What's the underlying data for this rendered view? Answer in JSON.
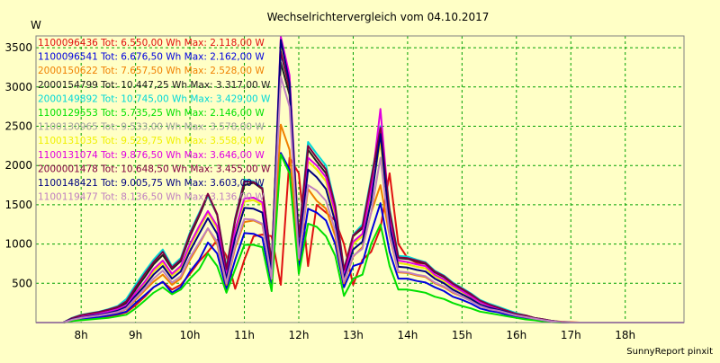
{
  "chart_data": {
    "type": "line",
    "title": "Wechselrichtervergleich vom 04.10.2017",
    "ylabel": "W",
    "xlabel": "",
    "footer": "SunnyReport pinxit",
    "ylim": [
      0,
      3650
    ],
    "xlim": [
      7.17,
      19.08
    ],
    "yticks": [
      500,
      1000,
      1500,
      2000,
      2500,
      3000,
      3500
    ],
    "xticks": [
      {
        "value": 8,
        "label": "8h"
      },
      {
        "value": 9,
        "label": "9h"
      },
      {
        "value": 10,
        "label": "10h"
      },
      {
        "value": 11,
        "label": "11h"
      },
      {
        "value": 12,
        "label": "12h"
      },
      {
        "value": 13,
        "label": "13h"
      },
      {
        "value": 14,
        "label": "14h"
      },
      {
        "value": 15,
        "label": "15h"
      },
      {
        "value": 16,
        "label": "16h"
      },
      {
        "value": 17,
        "label": "17h"
      },
      {
        "value": 18,
        "label": "18h"
      }
    ],
    "grid": true,
    "legend_position": "top-left",
    "x": [
      7.17,
      7.5,
      7.67,
      7.83,
      8.0,
      8.17,
      8.33,
      8.5,
      8.67,
      8.83,
      9.0,
      9.17,
      9.33,
      9.5,
      9.67,
      9.83,
      10.0,
      10.17,
      10.33,
      10.5,
      10.67,
      10.83,
      11.0,
      11.17,
      11.33,
      11.5,
      11.67,
      11.83,
      12.0,
      12.17,
      12.33,
      12.5,
      12.67,
      12.83,
      13.0,
      13.17,
      13.33,
      13.5,
      13.67,
      13.83,
      14.0,
      14.17,
      14.33,
      14.5,
      14.67,
      14.83,
      15.0,
      15.17,
      15.33,
      15.5,
      15.67,
      15.83,
      16.0,
      16.17,
      16.33,
      16.5,
      16.67,
      16.83,
      17.0,
      17.17,
      17.33,
      17.5,
      17.67,
      17.83,
      18.0,
      18.17,
      18.33,
      18.5,
      18.67,
      18.83,
      19.0,
      19.08
    ],
    "series": [
      {
        "name": "1100096436 Tot: 6.550,00 Wh Max: 2.118,00 W",
        "color": "#e01010",
        "values": [
          0,
          0,
          0,
          20,
          40,
          50,
          60,
          80,
          100,
          130,
          220,
          330,
          450,
          520,
          420,
          480,
          620,
          780,
          900,
          1050,
          850,
          430,
          800,
          1100,
          1120,
          1100,
          480,
          2100,
          1900,
          720,
          1500,
          1400,
          1300,
          1000,
          480,
          800,
          900,
          1200,
          1900,
          1000,
          820,
          760,
          750,
          600,
          540,
          470,
          400,
          300,
          240,
          180,
          160,
          140,
          110,
          80,
          60,
          40,
          20,
          10,
          5,
          0,
          0,
          0,
          0,
          0,
          0,
          0,
          0,
          0,
          0,
          0,
          0,
          0
        ]
      },
      {
        "name": "1100096541 Tot: 6.676,50 Wh Max: 2.162,00 W",
        "color": "#0000e0",
        "values": [
          0,
          0,
          0,
          30,
          50,
          60,
          70,
          90,
          110,
          140,
          250,
          350,
          450,
          520,
          380,
          450,
          650,
          800,
          1020,
          880,
          420,
          800,
          1140,
          1130,
          1080,
          490,
          2160,
          1950,
          700,
          1450,
          1400,
          1300,
          1000,
          450,
          720,
          760,
          1150,
          1520,
          900,
          560,
          560,
          530,
          510,
          450,
          400,
          330,
          290,
          240,
          180,
          150,
          130,
          100,
          80,
          60,
          40,
          20,
          10,
          5,
          0,
          0,
          0,
          0,
          0,
          0,
          0,
          0,
          0,
          0,
          0,
          0,
          0,
          0
        ]
      },
      {
        "name": "2000150622 Tot: 7.657,50 Wh Max: 2.528,00 W",
        "color": "#f08000",
        "values": [
          0,
          0,
          0,
          30,
          60,
          80,
          90,
          110,
          130,
          170,
          290,
          410,
          520,
          610,
          480,
          560,
          800,
          1000,
          1200,
          1000,
          480,
          950,
          1280,
          1300,
          1250,
          550,
          2520,
          2200,
          800,
          1700,
          1550,
          1450,
          1100,
          500,
          840,
          960,
          1400,
          1750,
          1100,
          640,
          630,
          600,
          580,
          500,
          450,
          380,
          330,
          280,
          210,
          170,
          150,
          120,
          90,
          70,
          50,
          30,
          15,
          5,
          0,
          0,
          0,
          0,
          0,
          0,
          0,
          0,
          0,
          0,
          0,
          0,
          0,
          0
        ]
      },
      {
        "name": "2000154799 Tot: 10.447,25 Wh Max: 3.317,00 W",
        "color": "#202020",
        "values": [
          0,
          0,
          0,
          50,
          90,
          110,
          130,
          160,
          190,
          250,
          420,
          580,
          740,
          860,
          680,
          780,
          1100,
          1360,
          1620,
          1370,
          650,
          1300,
          1750,
          1780,
          1700,
          740,
          3310,
          2900,
          1080,
          2200,
          2050,
          1900,
          1450,
          650,
          1100,
          1200,
          1800,
          2430,
          1400,
          820,
          810,
          780,
          750,
          640,
          580,
          490,
          420,
          350,
          270,
          220,
          190,
          150,
          110,
          90,
          60,
          40,
          20,
          5,
          0,
          0,
          0,
          0,
          0,
          0,
          0,
          0,
          0,
          0,
          0,
          0,
          0,
          0
        ]
      },
      {
        "name": "2000149892 Tot: 10.745,00 Wh Max: 3.429,00 W",
        "color": "#00d8d8",
        "values": [
          0,
          0,
          0,
          60,
          100,
          120,
          140,
          170,
          210,
          300,
          480,
          650,
          800,
          930,
          720,
          820,
          1150,
          1400,
          1620,
          1380,
          700,
          1330,
          1820,
          1800,
          1720,
          760,
          3420,
          3000,
          1100,
          2300,
          2150,
          2000,
          1500,
          680,
          1120,
          1250,
          1850,
          2500,
          1450,
          850,
          840,
          800,
          770,
          660,
          600,
          510,
          440,
          370,
          290,
          240,
          200,
          160,
          120,
          90,
          60,
          40,
          20,
          5,
          0,
          0,
          0,
          0,
          0,
          0,
          0,
          0,
          0,
          0,
          0,
          0,
          0,
          0
        ]
      },
      {
        "name": "1100129553 Tot: 5.735,25 Wh Max: 2.146,00 W",
        "color": "#00e000",
        "values": [
          0,
          0,
          0,
          20,
          30,
          40,
          50,
          60,
          80,
          100,
          180,
          280,
          380,
          450,
          360,
          420,
          560,
          680,
          880,
          720,
          380,
          680,
          990,
          990,
          960,
          400,
          2140,
          1900,
          620,
          1260,
          1220,
          1100,
          850,
          340,
          560,
          610,
          1000,
          1250,
          720,
          420,
          420,
          400,
          380,
          330,
          300,
          250,
          210,
          180,
          140,
          120,
          100,
          80,
          60,
          40,
          30,
          15,
          5,
          0,
          0,
          0,
          0,
          0,
          0,
          0,
          0,
          0,
          0,
          0,
          0,
          0,
          0,
          0
        ]
      },
      {
        "name": "1100130965 Tot: 9.533,00 Wh Max: 3.578,00 W",
        "color": "#a0a0a0",
        "values": [
          0,
          0,
          0,
          40,
          70,
          90,
          110,
          130,
          160,
          210,
          360,
          500,
          650,
          760,
          600,
          690,
          970,
          1200,
          1400,
          1200,
          580,
          1150,
          1540,
          1560,
          1500,
          660,
          3570,
          3100,
          950,
          2050,
          1950,
          1800,
          1350,
          600,
          1000,
          1100,
          1650,
          2300,
          1300,
          760,
          740,
          710,
          690,
          590,
          530,
          450,
          390,
          320,
          250,
          200,
          170,
          140,
          100,
          80,
          55,
          35,
          15,
          5,
          0,
          0,
          0,
          0,
          0,
          0,
          0,
          0,
          0,
          0,
          0,
          0,
          0,
          0
        ]
      },
      {
        "name": "1100131035 Tot: 9.529,75 Wh Max: 3.558,00 W",
        "color": "#f0f000",
        "values": [
          0,
          0,
          0,
          40,
          70,
          90,
          110,
          130,
          160,
          210,
          360,
          500,
          650,
          760,
          600,
          690,
          970,
          1200,
          1400,
          1200,
          580,
          1150,
          1540,
          1560,
          1500,
          660,
          3550,
          3100,
          950,
          2050,
          1950,
          1800,
          1350,
          600,
          1000,
          1100,
          1650,
          2300,
          1300,
          760,
          740,
          710,
          690,
          590,
          530,
          450,
          390,
          320,
          250,
          200,
          170,
          140,
          100,
          80,
          55,
          35,
          15,
          5,
          0,
          0,
          0,
          0,
          0,
          0,
          0,
          0,
          0,
          0,
          0,
          0,
          0,
          0
        ]
      },
      {
        "name": "1100131074 Tot: 9.876,50 Wh Max: 3.646,00 W",
        "color": "#e000e0",
        "values": [
          0,
          0,
          0,
          45,
          75,
          95,
          115,
          140,
          170,
          220,
          380,
          520,
          680,
          790,
          620,
          720,
          1000,
          1230,
          1420,
          1230,
          600,
          1180,
          1580,
          1590,
          1530,
          680,
          3640,
          3150,
          980,
          2100,
          2000,
          1850,
          1400,
          620,
          1030,
          1130,
          1700,
          2720,
          1350,
          790,
          770,
          740,
          720,
          610,
          550,
          470,
          400,
          330,
          260,
          210,
          180,
          140,
          100,
          80,
          55,
          35,
          15,
          5,
          0,
          0,
          0,
          0,
          0,
          0,
          0,
          0,
          0,
          0,
          0,
          0,
          0,
          0
        ]
      },
      {
        "name": "2000001478 Tot: 10.648,50 Wh Max: 3.455,00 W",
        "color": "#800040",
        "values": [
          0,
          0,
          0,
          55,
          95,
          115,
          135,
          165,
          200,
          270,
          450,
          620,
          770,
          900,
          700,
          800,
          1130,
          1380,
          1640,
          1380,
          680,
          1320,
          1800,
          1790,
          1710,
          750,
          3450,
          2980,
          1090,
          2250,
          2100,
          1950,
          1480,
          670,
          1110,
          1220,
          1820,
          2480,
          1420,
          830,
          820,
          790,
          760,
          650,
          590,
          500,
          430,
          360,
          280,
          230,
          190,
          150,
          110,
          90,
          60,
          40,
          20,
          5,
          0,
          0,
          0,
          0,
          0,
          0,
          0,
          0,
          0,
          0,
          0,
          0,
          0,
          0
        ]
      },
      {
        "name": "1100148421 Tot: 9.005,75 Wh Max: 3.603,00 W",
        "color": "#000080",
        "values": [
          0,
          0,
          0,
          40,
          65,
          85,
          100,
          120,
          150,
          200,
          340,
          470,
          610,
          720,
          560,
          650,
          910,
          1130,
          1330,
          1130,
          550,
          1080,
          1460,
          1450,
          1400,
          620,
          3600,
          3050,
          900,
          1950,
          1850,
          1700,
          1280,
          560,
          930,
          1030,
          1550,
          2400,
          1230,
          710,
          700,
          670,
          650,
          560,
          500,
          420,
          360,
          300,
          230,
          190,
          160,
          130,
          90,
          70,
          50,
          30,
          15,
          5,
          0,
          0,
          0,
          0,
          0,
          0,
          0,
          0,
          0,
          0,
          0,
          0,
          0,
          0
        ]
      },
      {
        "name": "1100119477 Tot: 8.136,50 Wh Max: 3.136,00 W",
        "color": "#c080c0",
        "values": [
          0,
          0,
          0,
          35,
          60,
          75,
          90,
          110,
          135,
          180,
          310,
          430,
          560,
          660,
          510,
          590,
          830,
          1020,
          1200,
          1030,
          500,
          980,
          1320,
          1310,
          1260,
          560,
          3130,
          2750,
          820,
          1750,
          1680,
          1550,
          1170,
          520,
          850,
          940,
          1400,
          2100,
          1120,
          650,
          640,
          610,
          590,
          510,
          460,
          390,
          330,
          270,
          210,
          170,
          150,
          120,
          90,
          70,
          50,
          30,
          15,
          5,
          0,
          0,
          0,
          0,
          0,
          0,
          0,
          0,
          0,
          0,
          0,
          0,
          0,
          0
        ]
      }
    ]
  }
}
